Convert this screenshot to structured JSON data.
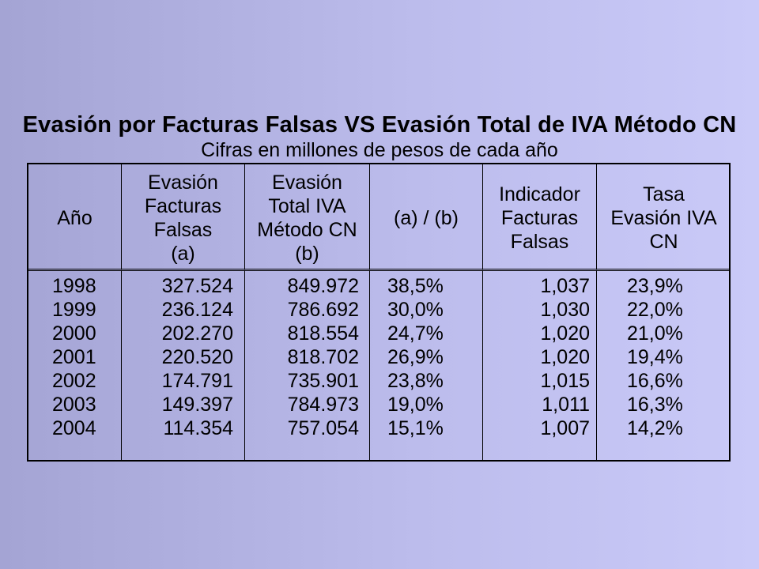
{
  "slide": {
    "title": "Evasión por Facturas Falsas VS Evasión Total de IVA Método CN",
    "subtitle": "Cifras en millones de pesos de cada año"
  },
  "table": {
    "headers": [
      "Año",
      "Evasión\nFacturas\nFalsas\n(a)",
      "Evasión\nTotal IVA\nMétodo CN\n(b)",
      "(a) / (b)",
      "Indicador\nFacturas\nFalsas",
      "Tasa\nEvasión IVA\nCN"
    ],
    "years": [
      "1998",
      "1999",
      "2000",
      "2001",
      "2002",
      "2003",
      "2004"
    ],
    "evasion_facturas": [
      "327.524",
      "236.124",
      "202.270",
      "220.520",
      "174.791",
      "149.397",
      "114.354"
    ],
    "evasion_total": [
      "849.972",
      "786.692",
      "818.554",
      "818.702",
      "735.901",
      "784.973",
      "757.054"
    ],
    "ratio": [
      "38,5%",
      "30,0%",
      "24,7%",
      "26,9%",
      "23,8%",
      "19,0%",
      "15,1%"
    ],
    "indicador": [
      "1,037",
      "1,030",
      "1,020",
      "1,020",
      "1,015",
      "1,011",
      "1,007"
    ],
    "tasa": [
      "23,9%",
      "22,0%",
      "21,0%",
      "19,4%",
      "16,6%",
      "16,3%",
      "14,2%"
    ]
  }
}
